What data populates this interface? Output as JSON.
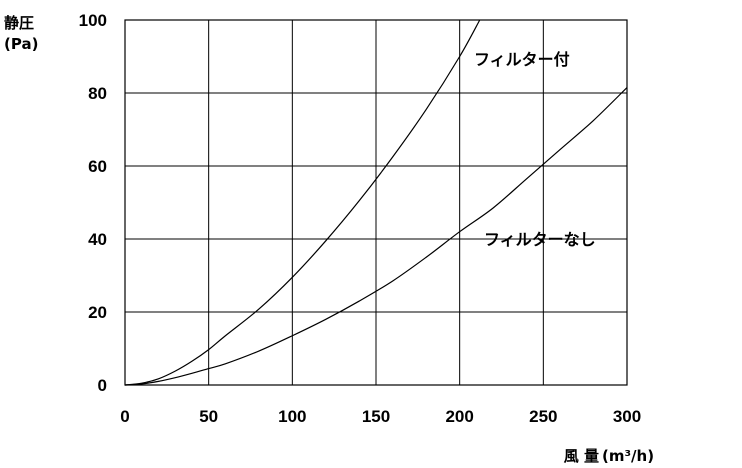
{
  "chart_data": {
    "type": "line",
    "xlabel_main": "風 量",
    "xlabel_unit": "(m³/h)",
    "ylabel_main": "静圧",
    "ylabel_unit": "(Pa)",
    "xlim": [
      0,
      300
    ],
    "ylim": [
      0,
      100
    ],
    "x_ticks": [
      0,
      50,
      100,
      150,
      200,
      250,
      300
    ],
    "y_ticks": [
      0,
      20,
      40,
      60,
      80,
      100
    ],
    "grid": true,
    "series": [
      {
        "name": "フィルター付",
        "x": [
          0,
          10,
          20,
          30,
          40,
          50,
          60,
          80,
          100,
          120,
          140,
          160,
          180,
          200,
          212
        ],
        "values": [
          0,
          0.5,
          1.7,
          3.8,
          6.5,
          9.7,
          13.5,
          20.8,
          29.5,
          39.5,
          50.5,
          62.5,
          75.5,
          90,
          100
        ]
      },
      {
        "name": "フィルターなし",
        "x": [
          0,
          10,
          20,
          30,
          40,
          50,
          60,
          80,
          100,
          120,
          140,
          160,
          180,
          200,
          220,
          240,
          260,
          280,
          300
        ],
        "values": [
          0,
          0.3,
          1,
          2,
          3.2,
          4.5,
          5.8,
          9.3,
          13.5,
          18,
          23,
          28.5,
          35,
          42,
          48.5,
          56.5,
          64.5,
          72.5,
          81.5
        ]
      }
    ]
  }
}
